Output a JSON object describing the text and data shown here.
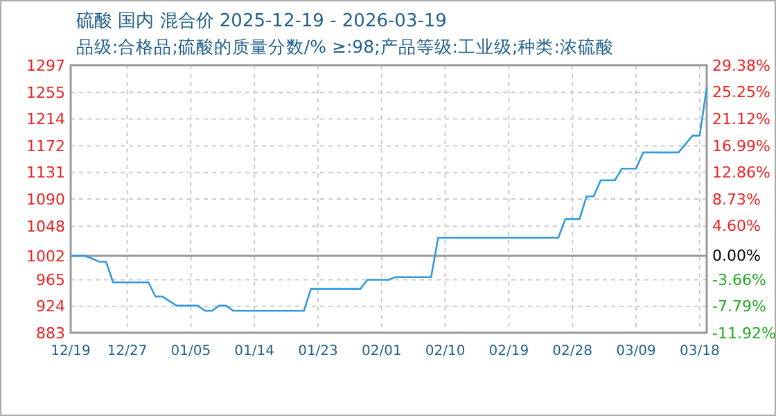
{
  "chart_data": {
    "type": "line",
    "title": "硫酸 国内 混合价 2025-12-19 - 2026-03-19",
    "subtitle": "品级:合格品;硫酸的质量分数/%  ≥:98;产品等级:工业级;种类:浓硫酸",
    "x": [
      "2025-12-19",
      "2025-12-21",
      "2025-12-22",
      "2025-12-23",
      "2025-12-24",
      "2025-12-25",
      "2025-12-30",
      "2025-12-31",
      "2026-01-01",
      "2026-01-03",
      "2026-01-06",
      "2026-01-07",
      "2026-01-08",
      "2026-01-09",
      "2026-01-10",
      "2026-01-11",
      "2026-01-21",
      "2026-01-22",
      "2026-01-29",
      "2026-01-30",
      "2026-02-02",
      "2026-02-03",
      "2026-02-08",
      "2026-02-09",
      "2026-02-26",
      "2026-02-27",
      "2026-03-01",
      "2026-03-02",
      "2026-03-03",
      "2026-03-04",
      "2026-03-06",
      "2026-03-07",
      "2026-03-09",
      "2026-03-10",
      "2026-03-15",
      "2026-03-17",
      "2026-03-18",
      "2026-03-19"
    ],
    "series": [
      {
        "color": "#3399dd",
        "values": [
          1002,
          1002,
          998,
          993,
          993,
          961,
          961,
          939,
          939,
          925,
          925,
          917,
          917,
          925,
          925,
          917,
          917,
          951,
          951,
          965,
          965,
          969,
          969,
          1030,
          1030,
          1059,
          1059,
          1094,
          1094,
          1119,
          1119,
          1137,
          1137,
          1162,
          1162,
          1188,
          1188,
          1262
        ]
      }
    ],
    "xlim": [
      "2025-12-19",
      "2026-03-19"
    ],
    "xticks": [
      {
        "value": "2025-12-19",
        "label": "12/19"
      },
      {
        "value": "2025-12-27",
        "label": "12/27"
      },
      {
        "value": "2026-01-05",
        "label": "01/05"
      },
      {
        "value": "2026-01-14",
        "label": "01/14"
      },
      {
        "value": "2026-01-23",
        "label": "01/23"
      },
      {
        "value": "2026-02-01",
        "label": "02/01"
      },
      {
        "value": "2026-02-10",
        "label": "02/10"
      },
      {
        "value": "2026-02-19",
        "label": "02/19"
      },
      {
        "value": "2026-02-28",
        "label": "02/28"
      },
      {
        "value": "2026-03-09",
        "label": "03/09"
      },
      {
        "value": "2026-03-18",
        "label": "03/18"
      }
    ],
    "ylim": [
      883,
      1297
    ],
    "yticks": [
      883,
      924,
      965,
      1002,
      1048,
      1090,
      1131,
      1172,
      1214,
      1255,
      1297
    ],
    "y2lim": [
      -11.92,
      29.38
    ],
    "y2ticks": [
      {
        "value": -11.92,
        "label": "-11.92%"
      },
      {
        "value": -7.79,
        "label": "-7.79%"
      },
      {
        "value": -3.66,
        "label": "-3.66%"
      },
      {
        "value": 0,
        "label": "0.00%"
      },
      {
        "value": 4.6,
        "label": "4.60%"
      },
      {
        "value": 8.73,
        "label": "8.73%"
      },
      {
        "value": 12.86,
        "label": "12.86%"
      },
      {
        "value": 16.99,
        "label": "16.99%"
      },
      {
        "value": 21.12,
        "label": "21.12%"
      },
      {
        "value": 25.25,
        "label": "25.25%"
      },
      {
        "value": 29.38,
        "label": "29.38%"
      }
    ],
    "ref_lines": [
      {
        "axis": "y",
        "value": 1002,
        "color": "#999999"
      }
    ],
    "grid": true,
    "line_style": "solid",
    "marker": "none"
  }
}
